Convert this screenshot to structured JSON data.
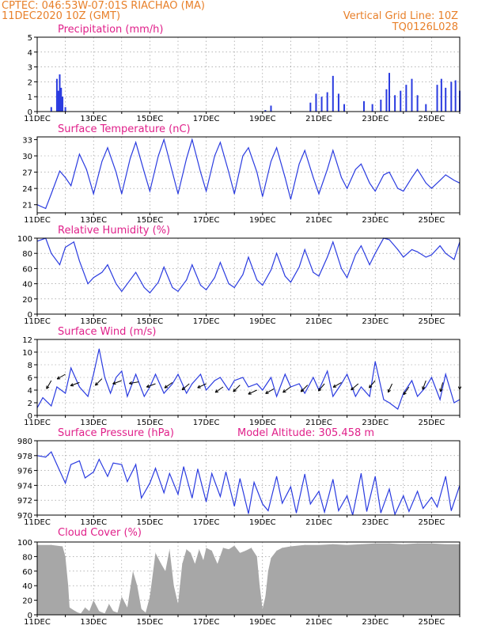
{
  "header": {
    "line1": "CPTEC:  046:53W-07:01S  RIACHAO (MA)",
    "line2": "11DEC2020 10Z (GMT)",
    "grid_note": "Vertical Grid Line: 10Z",
    "code": "TQ0126L028"
  },
  "colors": {
    "header": "#e8802a",
    "title": "#e0208a",
    "line": "#2a3be0",
    "bar": "#2a3be0",
    "cloud": "#a7a7a7"
  },
  "x_axis": {
    "labels": [
      "11DEC",
      "13DEC",
      "15DEC",
      "17DEC",
      "19DEC",
      "21DEC",
      "23DEC",
      "25DEC"
    ],
    "range_days": [
      0,
      15
    ]
  },
  "chart_data": [
    {
      "type": "bar",
      "title": "Precipitation  (mm/h)",
      "ylim": [
        0,
        5
      ],
      "yticks": [
        "0",
        "1",
        "2",
        "3",
        "4",
        "5"
      ],
      "values_by_day": [
        [
          0.5,
          0.3
        ],
        [
          0.7,
          2.2
        ],
        [
          0.75,
          1.4
        ],
        [
          0.8,
          2.5
        ],
        [
          0.85,
          1.6
        ],
        [
          0.9,
          1.0
        ],
        [
          1.0,
          0.3
        ],
        [
          8.1,
          0.1
        ],
        [
          8.3,
          0.4
        ],
        [
          9.7,
          0.6
        ],
        [
          9.9,
          1.2
        ],
        [
          10.1,
          1.0
        ],
        [
          10.3,
          1.3
        ],
        [
          10.5,
          2.4
        ],
        [
          10.7,
          1.2
        ],
        [
          10.9,
          0.5
        ],
        [
          11.6,
          0.7
        ],
        [
          11.9,
          0.5
        ],
        [
          12.2,
          0.8
        ],
        [
          12.4,
          1.5
        ],
        [
          12.5,
          2.6
        ],
        [
          12.7,
          1.1
        ],
        [
          12.9,
          1.4
        ],
        [
          13.1,
          1.8
        ],
        [
          13.3,
          2.2
        ],
        [
          13.5,
          1.1
        ],
        [
          13.8,
          0.5
        ],
        [
          14.2,
          1.8
        ],
        [
          14.35,
          2.2
        ],
        [
          14.5,
          1.6
        ],
        [
          14.7,
          2.0
        ],
        [
          14.85,
          2.1
        ],
        [
          15.0,
          1.4
        ]
      ]
    },
    {
      "type": "line",
      "title": "Surface Temperature  (nC)",
      "ylim": [
        19.5,
        33.5
      ],
      "yticks": [
        "21",
        "24",
        "27",
        "30",
        "33"
      ],
      "x": [
        0,
        0.3,
        0.5,
        0.8,
        1.0,
        1.2,
        1.5,
        1.75,
        2.0,
        2.3,
        2.5,
        2.8,
        3.0,
        3.3,
        3.5,
        3.8,
        4.0,
        4.3,
        4.5,
        4.8,
        5.0,
        5.3,
        5.5,
        5.8,
        6.0,
        6.3,
        6.5,
        6.8,
        7.0,
        7.3,
        7.5,
        7.8,
        8.0,
        8.3,
        8.5,
        8.8,
        9.0,
        9.3,
        9.5,
        9.8,
        10.0,
        10.3,
        10.5,
        10.8,
        11.0,
        11.3,
        11.5,
        11.8,
        12.0,
        12.3,
        12.5,
        12.8,
        13.0,
        13.3,
        13.5,
        13.8,
        14.0,
        14.3,
        14.5,
        14.8,
        15.0
      ],
      "y": [
        21,
        20.3,
        23,
        27.2,
        26,
        24.5,
        30.3,
        27.5,
        23,
        29,
        31.5,
        27,
        23,
        29.5,
        32.5,
        27,
        23.5,
        30,
        33,
        27,
        23,
        29.5,
        33,
        27,
        23.5,
        30,
        32.5,
        27,
        23,
        30,
        31.5,
        27,
        22.5,
        29,
        31.5,
        26,
        22,
        28.5,
        31,
        26,
        23,
        27.5,
        31,
        26,
        24,
        27.5,
        28.5,
        25,
        23.5,
        26.5,
        27,
        24,
        23.5,
        26,
        27.5,
        25,
        24,
        25.5,
        26.5,
        25.5,
        25
      ]
    },
    {
      "type": "line",
      "title": "Relative Humidity  (%)",
      "ylim": [
        0,
        100
      ],
      "yticks": [
        "0",
        "20",
        "40",
        "60",
        "80",
        "100"
      ],
      "x": [
        0,
        0.3,
        0.5,
        0.8,
        1.0,
        1.3,
        1.5,
        1.8,
        2.0,
        2.3,
        2.5,
        2.8,
        3.0,
        3.3,
        3.5,
        3.8,
        4.0,
        4.3,
        4.5,
        4.8,
        5.0,
        5.3,
        5.5,
        5.8,
        6.0,
        6.3,
        6.5,
        6.8,
        7.0,
        7.3,
        7.5,
        7.8,
        8.0,
        8.3,
        8.5,
        8.8,
        9.0,
        9.3,
        9.5,
        9.8,
        10.0,
        10.3,
        10.5,
        10.8,
        11.0,
        11.3,
        11.5,
        11.8,
        12.0,
        12.3,
        12.5,
        12.8,
        13.0,
        13.3,
        13.5,
        13.8,
        14.0,
        14.3,
        14.5,
        14.8,
        15.0
      ],
      "y": [
        96,
        100,
        80,
        65,
        88,
        95,
        70,
        40,
        48,
        55,
        65,
        40,
        30,
        45,
        55,
        35,
        28,
        42,
        62,
        35,
        30,
        45,
        65,
        38,
        32,
        48,
        68,
        40,
        35,
        52,
        75,
        45,
        38,
        58,
        80,
        50,
        42,
        62,
        85,
        55,
        50,
        75,
        95,
        60,
        48,
        78,
        90,
        65,
        80,
        100,
        98,
        85,
        75,
        85,
        82,
        75,
        78,
        90,
        80,
        72,
        95
      ]
    },
    {
      "type": "line",
      "title": "Surface Wind  (m/s)",
      "ylim": [
        0,
        12
      ],
      "yticks": [
        "0",
        "2",
        "4",
        "6",
        "8",
        "10",
        "12"
      ],
      "x": [
        0,
        0.2,
        0.5,
        0.7,
        1.0,
        1.2,
        1.5,
        1.8,
        2.0,
        2.2,
        2.4,
        2.6,
        2.8,
        3.0,
        3.2,
        3.5,
        3.8,
        4.0,
        4.2,
        4.5,
        4.8,
        5.0,
        5.3,
        5.5,
        5.8,
        6.0,
        6.3,
        6.5,
        6.8,
        7.0,
        7.3,
        7.5,
        7.8,
        8.0,
        8.3,
        8.5,
        8.8,
        9.0,
        9.3,
        9.5,
        9.8,
        10.0,
        10.3,
        10.5,
        10.8,
        11.0,
        11.3,
        11.5,
        11.8,
        12.0,
        12.3,
        12.5,
        12.8,
        13.0,
        13.3,
        13.5,
        13.8,
        14.0,
        14.3,
        14.5,
        14.8,
        15.0
      ],
      "y": [
        1.2,
        2.8,
        1.5,
        4.5,
        3.5,
        7.5,
        4.5,
        3.0,
        6.5,
        10.5,
        6.0,
        3.5,
        6.0,
        7.0,
        3.0,
        6.5,
        3.0,
        4.5,
        6.5,
        3.5,
        5.0,
        6.5,
        3.5,
        5.0,
        6.5,
        4.0,
        5.5,
        6.0,
        4.0,
        5.5,
        6.0,
        4.5,
        5.0,
        4.0,
        6.0,
        3.0,
        6.5,
        4.5,
        5.0,
        3.5,
        6.0,
        4.0,
        7.0,
        3.0,
        5.0,
        6.5,
        3.0,
        4.5,
        3.0,
        8.5,
        2.5,
        2.0,
        1.0,
        3.5,
        5.5,
        3.0,
        4.5,
        6.0,
        2.5,
        6.5,
        2.0,
        2.5
      ],
      "arrows": [
        [
          0.5,
          5.5,
          240
        ],
        [
          1.0,
          6.5,
          210
        ],
        [
          1.5,
          5.2,
          200
        ],
        [
          2.3,
          5.8,
          225
        ],
        [
          3.0,
          5.5,
          200
        ],
        [
          3.6,
          5.3,
          190
        ],
        [
          4.2,
          5.0,
          200
        ],
        [
          4.8,
          5.2,
          215
        ],
        [
          5.4,
          5.0,
          220
        ],
        [
          6.0,
          5.0,
          205
        ],
        [
          6.6,
          4.5,
          215
        ],
        [
          7.2,
          4.8,
          225
        ],
        [
          7.8,
          4.0,
          205
        ],
        [
          8.4,
          4.2,
          210
        ],
        [
          9.0,
          4.5,
          215
        ],
        [
          9.6,
          4.8,
          225
        ],
        [
          10.2,
          5.0,
          230
        ],
        [
          10.8,
          5.2,
          210
        ],
        [
          11.4,
          5.0,
          220
        ],
        [
          12.0,
          5.5,
          230
        ],
        [
          12.6,
          5.0,
          245
        ],
        [
          13.2,
          4.5,
          235
        ],
        [
          13.8,
          5.5,
          250
        ],
        [
          14.4,
          5.2,
          255
        ],
        [
          15.0,
          5.6,
          270
        ]
      ]
    },
    {
      "type": "line",
      "title": "Surface Pressure  (hPa)",
      "annotation": "Model Altitude: 305.458  m",
      "ylim": [
        970,
        980
      ],
      "yticks": [
        "970",
        "972",
        "974",
        "976",
        "978",
        "980"
      ],
      "x": [
        0,
        0.3,
        0.5,
        0.7,
        1.0,
        1.2,
        1.5,
        1.7,
        2.0,
        2.2,
        2.5,
        2.7,
        3.0,
        3.2,
        3.5,
        3.7,
        4.0,
        4.2,
        4.5,
        4.7,
        5.0,
        5.2,
        5.5,
        5.7,
        6.0,
        6.2,
        6.5,
        6.7,
        7.0,
        7.2,
        7.5,
        7.7,
        8.0,
        8.2,
        8.5,
        8.7,
        9.0,
        9.2,
        9.5,
        9.7,
        10.0,
        10.2,
        10.5,
        10.7,
        11.0,
        11.2,
        11.5,
        11.7,
        12.0,
        12.2,
        12.5,
        12.7,
        13.0,
        13.2,
        13.5,
        13.7,
        14.0,
        14.2,
        14.5,
        14.7,
        15.0
      ],
      "y": [
        978,
        977.8,
        978.5,
        976.8,
        974.3,
        976.8,
        977.3,
        975,
        975.8,
        977.5,
        975.2,
        977,
        976.8,
        974.5,
        976.8,
        972.3,
        974.3,
        976.3,
        973,
        975.6,
        972.8,
        976.5,
        972.3,
        976.2,
        971.8,
        975.6,
        972.5,
        975.8,
        971.2,
        974.9,
        970.2,
        974.4,
        971.5,
        970.6,
        975.2,
        971.6,
        973.8,
        970.3,
        975.5,
        971.5,
        973.2,
        970.4,
        974.8,
        970.6,
        972.6,
        970,
        975.6,
        970.5,
        975.2,
        970.3,
        973.5,
        970.1,
        972.6,
        970.5,
        973.2,
        970.9,
        972.4,
        971.1,
        975.2,
        970.6,
        974
      ]
    },
    {
      "type": "area",
      "title": "Cloud Cover  (%)",
      "ylim": [
        0,
        100
      ],
      "yticks": [
        "0",
        "20",
        "40",
        "60",
        "80",
        "100"
      ],
      "x": [
        0,
        0.5,
        0.9,
        1.0,
        1.1,
        1.15,
        1.35,
        1.45,
        1.55,
        1.7,
        1.85,
        2.0,
        2.2,
        2.4,
        2.55,
        2.7,
        2.85,
        3.0,
        3.2,
        3.4,
        3.55,
        3.7,
        3.85,
        4.0,
        4.2,
        4.4,
        4.55,
        4.7,
        4.85,
        5.0,
        5.15,
        5.3,
        5.45,
        5.6,
        5.75,
        5.9,
        6.0,
        6.2,
        6.4,
        6.6,
        6.8,
        7.0,
        7.2,
        7.4,
        7.6,
        7.8,
        7.9,
        8.0,
        8.1,
        8.2,
        8.3,
        8.5,
        8.7,
        9.0,
        9.5,
        10.0,
        10.5,
        11.0,
        11.5,
        12.0,
        12.5,
        13.0,
        13.5,
        14.0,
        14.5,
        15.0
      ],
      "y": [
        96,
        96,
        94,
        80,
        40,
        10,
        5,
        3,
        2,
        10,
        5,
        20,
        5,
        2,
        15,
        5,
        3,
        25,
        10,
        60,
        40,
        8,
        3,
        25,
        85,
        70,
        60,
        90,
        40,
        15,
        70,
        90,
        85,
        70,
        90,
        75,
        92,
        88,
        70,
        92,
        90,
        95,
        85,
        88,
        92,
        80,
        40,
        8,
        25,
        60,
        78,
        88,
        92,
        94,
        96,
        96,
        97,
        96,
        97,
        98,
        98,
        97,
        98,
        98,
        97,
        97
      ]
    }
  ]
}
